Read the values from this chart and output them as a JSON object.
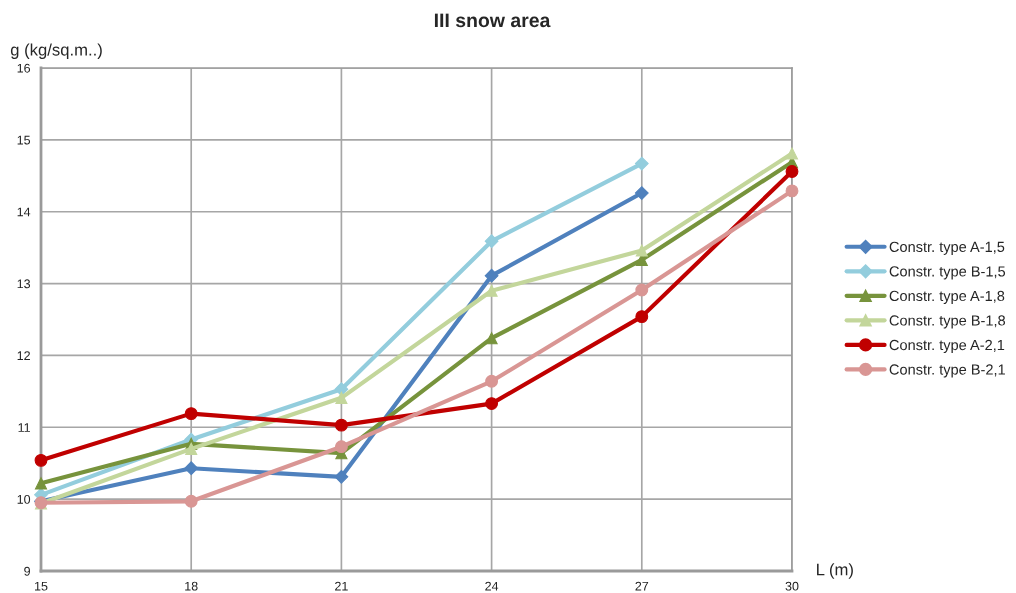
{
  "chart_data": {
    "type": "line",
    "title": "III snow area",
    "xlabel": "L (m)",
    "ylabel": "g (kg/sq.m..)",
    "x": [
      15,
      18,
      21,
      24,
      27,
      30
    ],
    "series": [
      {
        "name": "Constr. type A-1,5",
        "color": "#4f81bd",
        "marker": "diamond",
        "values": [
          9.97,
          10.43,
          10.31,
          13.11,
          14.26,
          null
        ]
      },
      {
        "name": "Constr. type B-1,5",
        "color": "#93cddd",
        "marker": "diamond",
        "values": [
          10.06,
          10.83,
          11.53,
          13.59,
          14.67,
          null
        ]
      },
      {
        "name": "Constr. type A-1,8",
        "color": "#77933c",
        "marker": "triangle",
        "values": [
          10.22,
          10.77,
          10.64,
          12.24,
          13.33,
          14.69
        ]
      },
      {
        "name": "Constr. type B-1,8",
        "color": "#c3d69b",
        "marker": "triangle",
        "values": [
          9.94,
          10.7,
          11.41,
          12.9,
          13.46,
          14.81
        ]
      },
      {
        "name": "Constr. type A-2,1",
        "color": "#c00000",
        "marker": "circle",
        "values": [
          10.54,
          11.19,
          11.03,
          11.33,
          12.54,
          14.56
        ]
      },
      {
        "name": "Constr. type B-2,1",
        "color": "#d99694",
        "marker": "circle",
        "values": [
          9.95,
          9.97,
          10.73,
          11.64,
          12.91,
          14.29
        ]
      }
    ],
    "xlim": [
      15,
      30
    ],
    "xticks": [
      15,
      18,
      21,
      24,
      27,
      30
    ],
    "ylim": [
      9,
      16
    ],
    "yticks": [
      9,
      10,
      11,
      12,
      13,
      14,
      15,
      16
    ],
    "grid": true,
    "legend": "right",
    "line_style": "solid"
  }
}
